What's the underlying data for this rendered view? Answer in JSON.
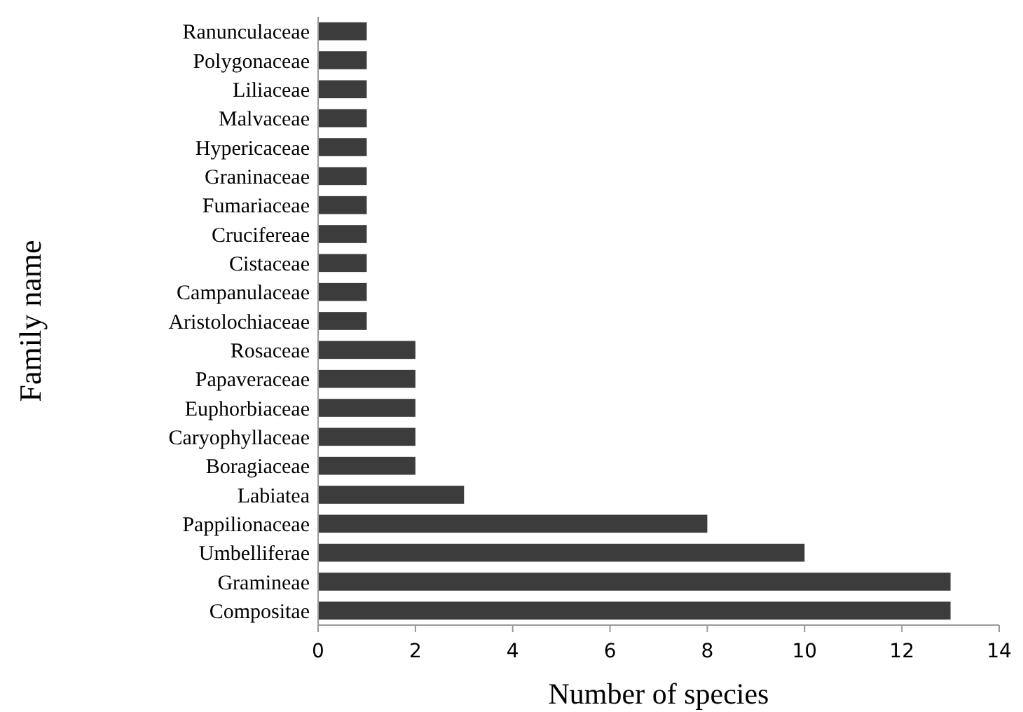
{
  "chart_data": {
    "type": "bar",
    "orientation": "horizontal",
    "xlabel": "Number of species",
    "ylabel": "Family name",
    "categories": [
      "Ranunculaceae",
      "Polygonaceae",
      "Liliaceae",
      "Malvaceae",
      "Hypericaceae",
      "Graninaceae",
      "Fumariaceae",
      "Crucifereae",
      "Cistaceae",
      "Campanulaceae",
      "Aristolochiaceae",
      "Rosaceae",
      "Papaveraceae",
      "Euphorbiaceae",
      "Caryophyllaceae",
      "Boragiaceae",
      "Labiatea",
      "Pappilionaceae",
      "Umbelliferae",
      "Gramineae",
      "Compositae"
    ],
    "values": [
      1,
      1,
      1,
      1,
      1,
      1,
      1,
      1,
      1,
      1,
      1,
      2,
      2,
      2,
      2,
      2,
      3,
      8,
      10,
      13,
      13
    ],
    "color": "#3c3c3c",
    "xlim": [
      0,
      14
    ],
    "xticks": [
      0,
      2,
      4,
      6,
      8,
      10,
      12,
      14
    ],
    "grid": false
  }
}
